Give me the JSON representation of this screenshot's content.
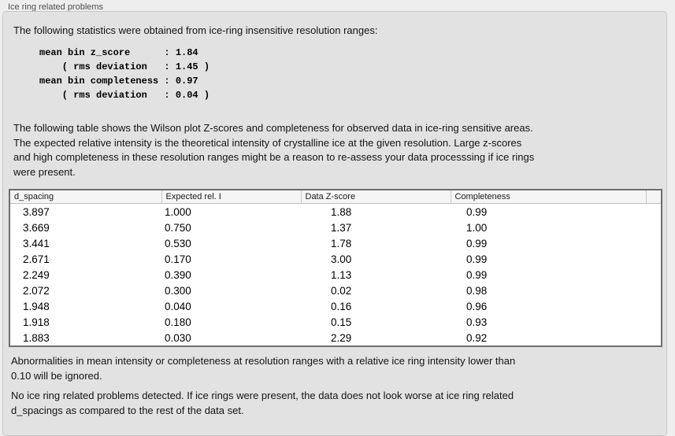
{
  "panel": {
    "title": "Ice ring related problems"
  },
  "intro": {
    "text": "The following statistics were obtained from ice-ring insensitive resolution ranges:"
  },
  "stats_block": {
    "text": "mean bin z_score      : 1.84\n    ( rms deviation   : 1.45 )\nmean bin completeness : 0.97\n    ( rms deviation   : 0.04 )",
    "values": {
      "mean_bin_z_score": "1.84",
      "z_score_rms_deviation": "1.45",
      "mean_bin_completeness": "0.97",
      "completeness_rms_deviation": "0.04"
    }
  },
  "description": {
    "text": "The following table shows the Wilson plot Z-scores and completeness for observed data in ice-ring sensitive areas.\nThe expected relative intensity is the theoretical intensity of crystalline ice at the given resolution. Large z-scores\nand high completeness in these resolution ranges might be a reason to re-assess your data processsing if ice rings\nwere present."
  },
  "table": {
    "columns": [
      "d_spacing",
      "Expected rel. I",
      "Data Z-score",
      "Completeness"
    ],
    "rows": [
      [
        "3.897",
        "1.000",
        "1.88",
        "0.99"
      ],
      [
        "3.669",
        "0.750",
        "1.37",
        "1.00"
      ],
      [
        "3.441",
        "0.530",
        "1.78",
        "0.99"
      ],
      [
        "2.671",
        "0.170",
        "3.00",
        "0.99"
      ],
      [
        "2.249",
        "0.390",
        "1.13",
        "0.99"
      ],
      [
        "2.072",
        "0.300",
        "0.02",
        "0.98"
      ],
      [
        "1.948",
        "0.040",
        "0.16",
        "0.96"
      ],
      [
        "1.918",
        "0.180",
        "0.15",
        "0.93"
      ],
      [
        "1.883",
        "0.030",
        "2.29",
        "0.92"
      ]
    ]
  },
  "footer": {
    "ignore_note": "Abnormalities in mean intensity or completeness at resolution ranges with a relative ice ring intensity lower than\n0.10 will be ignored.",
    "conclusion": "No ice ring related problems detected. If ice rings were present, the data does not look worse at ice ring related\nd_spacings as compared to the rest of the data set."
  },
  "colors": {
    "page_background": "#eeeeee",
    "panel_background": "#e2e2e2",
    "panel_border": "#c6c6c6",
    "table_border": "#6e6e6e",
    "table_header_background": "#f5f5f5",
    "text": "#141414"
  }
}
